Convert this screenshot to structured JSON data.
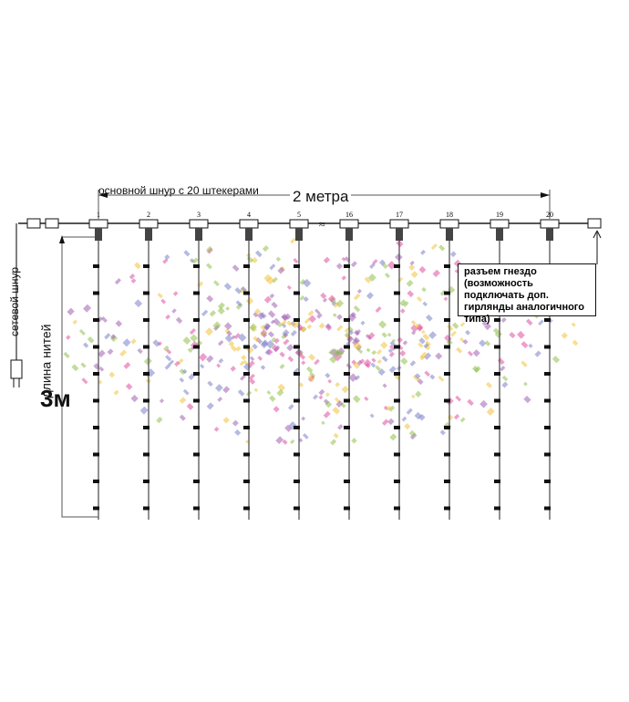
{
  "main_cord_label": "основной шнур с 20 штекерами",
  "width_label": "2 метра",
  "power_cord_label": "сетевой шнур",
  "thread_length_label": "длина нитей",
  "thread_length_value": "3м",
  "socket_note": "разъем гнездо (возможность подключать доп. гирлянды аналогичного типа)",
  "strand_numbers": [
    "1",
    "2",
    "3",
    "4",
    "5",
    "16",
    "17",
    "18",
    "19",
    "20"
  ],
  "colors": {
    "line": "#555555",
    "bulb": "#111111",
    "accent": [
      "#e04fa0",
      "#f2c23a",
      "#8fc04a",
      "#7a82c8",
      "#a060b0"
    ]
  }
}
